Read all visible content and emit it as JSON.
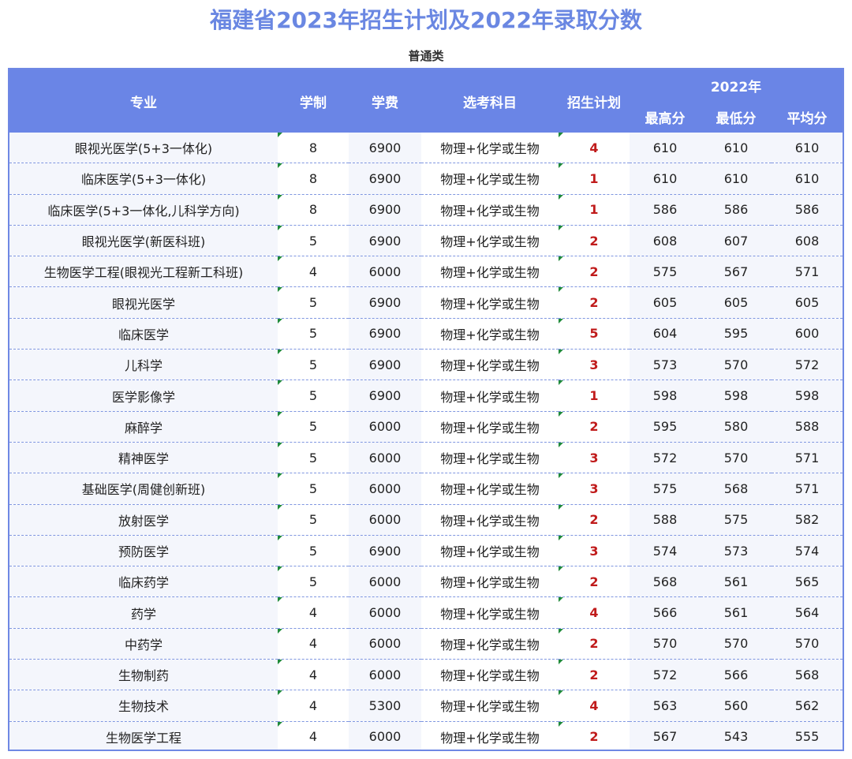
{
  "title": "福建省2023年招生计划及2022年录取分数",
  "subtitle": "普通类",
  "headers": {
    "major": "专业",
    "years": "学制",
    "fee": "学费",
    "subjects": "选考科目",
    "plan": "招生计划",
    "year_group": "2022年",
    "max": "最高分",
    "min": "最低分",
    "avg": "平均分"
  },
  "rows": [
    {
      "major": "眼视光医学(5+3一体化)",
      "years": "8",
      "fee": "6900",
      "subjects": "物理+化学或生物",
      "plan": "4",
      "max": "610",
      "min": "610",
      "avg": "610"
    },
    {
      "major": "临床医学(5+3一体化)",
      "years": "8",
      "fee": "6900",
      "subjects": "物理+化学或生物",
      "plan": "1",
      "max": "610",
      "min": "610",
      "avg": "610"
    },
    {
      "major": "临床医学(5+3一体化,儿科学方向)",
      "years": "8",
      "fee": "6900",
      "subjects": "物理+化学或生物",
      "plan": "1",
      "max": "586",
      "min": "586",
      "avg": "586"
    },
    {
      "major": "眼视光医学(新医科班)",
      "years": "5",
      "fee": "6900",
      "subjects": "物理+化学或生物",
      "plan": "2",
      "max": "608",
      "min": "607",
      "avg": "608"
    },
    {
      "major": "生物医学工程(眼视光工程新工科班)",
      "years": "4",
      "fee": "6000",
      "subjects": "物理+化学或生物",
      "plan": "2",
      "max": "575",
      "min": "567",
      "avg": "571"
    },
    {
      "major": "眼视光医学",
      "years": "5",
      "fee": "6900",
      "subjects": "物理+化学或生物",
      "plan": "2",
      "max": "605",
      "min": "605",
      "avg": "605"
    },
    {
      "major": "临床医学",
      "years": "5",
      "fee": "6900",
      "subjects": "物理+化学或生物",
      "plan": "5",
      "max": "604",
      "min": "595",
      "avg": "600"
    },
    {
      "major": "儿科学",
      "years": "5",
      "fee": "6900",
      "subjects": "物理+化学或生物",
      "plan": "3",
      "max": "573",
      "min": "570",
      "avg": "572"
    },
    {
      "major": "医学影像学",
      "years": "5",
      "fee": "6900",
      "subjects": "物理+化学或生物",
      "plan": "1",
      "max": "598",
      "min": "598",
      "avg": "598"
    },
    {
      "major": "麻醉学",
      "years": "5",
      "fee": "6000",
      "subjects": "物理+化学或生物",
      "plan": "2",
      "max": "595",
      "min": "580",
      "avg": "588"
    },
    {
      "major": "精神医学",
      "years": "5",
      "fee": "6000",
      "subjects": "物理+化学或生物",
      "plan": "3",
      "max": "572",
      "min": "570",
      "avg": "571"
    },
    {
      "major": "基础医学(周健创新班)",
      "years": "5",
      "fee": "6000",
      "subjects": "物理+化学或生物",
      "plan": "3",
      "max": "575",
      "min": "568",
      "avg": "571"
    },
    {
      "major": "放射医学",
      "years": "5",
      "fee": "6000",
      "subjects": "物理+化学或生物",
      "plan": "2",
      "max": "588",
      "min": "575",
      "avg": "582"
    },
    {
      "major": "预防医学",
      "years": "5",
      "fee": "6900",
      "subjects": "物理+化学或生物",
      "plan": "3",
      "max": "574",
      "min": "573",
      "avg": "574"
    },
    {
      "major": "临床药学",
      "years": "5",
      "fee": "6000",
      "subjects": "物理+化学或生物",
      "plan": "2",
      "max": "568",
      "min": "561",
      "avg": "565"
    },
    {
      "major": "药学",
      "years": "4",
      "fee": "6000",
      "subjects": "物理+化学或生物",
      "plan": "4",
      "max": "566",
      "min": "561",
      "avg": "564"
    },
    {
      "major": "中药学",
      "years": "4",
      "fee": "6000",
      "subjects": "物理+化学或生物",
      "plan": "2",
      "max": "570",
      "min": "570",
      "avg": "570"
    },
    {
      "major": "生物制药",
      "years": "4",
      "fee": "6000",
      "subjects": "物理+化学或生物",
      "plan": "2",
      "max": "572",
      "min": "566",
      "avg": "568"
    },
    {
      "major": "生物技术",
      "years": "4",
      "fee": "5300",
      "subjects": "物理+化学或生物",
      "plan": "4",
      "max": "563",
      "min": "560",
      "avg": "562"
    },
    {
      "major": "生物医学工程",
      "years": "4",
      "fee": "6000",
      "subjects": "物理+化学或生物",
      "plan": "2",
      "max": "567",
      "min": "543",
      "avg": "555"
    }
  ]
}
